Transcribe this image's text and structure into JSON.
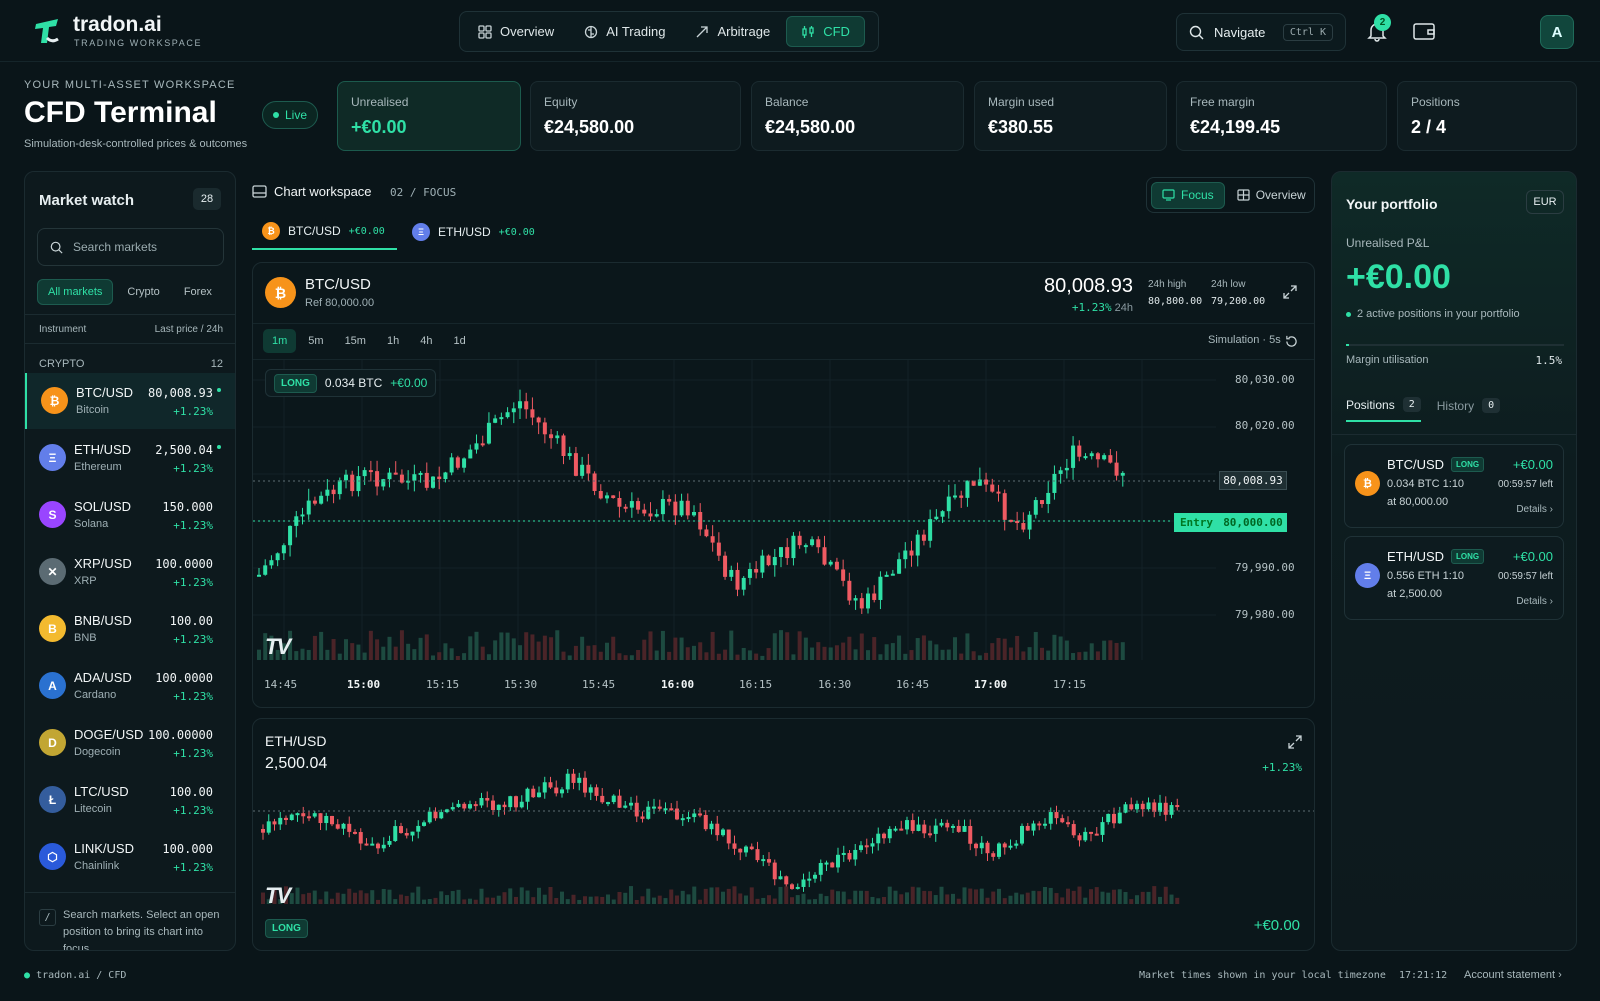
{
  "brand": {
    "name": "tradon.ai",
    "subtitle": "TRADING WORKSPACE"
  },
  "nav": [
    {
      "label": "Overview",
      "icon": "grid-icon"
    },
    {
      "label": "AI Trading",
      "icon": "brain-icon"
    },
    {
      "label": "Arbitrage",
      "icon": "trend-arrow-icon"
    },
    {
      "label": "CFD",
      "icon": "candles-icon",
      "active": true
    }
  ],
  "navigate": {
    "label": "Navigate",
    "shortcut": "Ctrl K"
  },
  "notifications": {
    "count": "2"
  },
  "user": {
    "initial": "A"
  },
  "header": {
    "eyebrow": "YOUR MULTI-ASSET WORKSPACE",
    "title": "CFD Terminal",
    "live": "Live",
    "subtitle": "Simulation-desk-controlled prices & outcomes"
  },
  "stats": [
    {
      "label": "Unrealised",
      "value": "+€0.00"
    },
    {
      "label": "Equity",
      "value": "€24,580.00"
    },
    {
      "label": "Balance",
      "value": "€24,580.00"
    },
    {
      "label": "Margin used",
      "value": "€380.55"
    },
    {
      "label": "Free margin",
      "value": "€24,199.45"
    },
    {
      "label": "Positions",
      "value": "2 / 4"
    }
  ],
  "market_watch": {
    "title": "Market watch",
    "count": "28",
    "search_placeholder": "Search markets",
    "tabs": [
      "All markets",
      "Crypto",
      "Forex"
    ],
    "col_instrument": "Instrument",
    "col_price": "Last price / 24h",
    "group": "CRYPTO",
    "group_count": "12",
    "rows": [
      {
        "symbol": "BTC/USD",
        "name": "Bitcoin",
        "price": "80,008.93",
        "change": "+1.23%",
        "glyph": "₿",
        "color": "#f7931a"
      },
      {
        "symbol": "ETH/USD",
        "name": "Ethereum",
        "price": "2,500.04",
        "change": "+1.23%",
        "glyph": "Ξ",
        "color": "#627eea"
      },
      {
        "symbol": "SOL/USD",
        "name": "Solana",
        "price": "150.000",
        "change": "+1.23%",
        "glyph": "S",
        "color": "#9945ff"
      },
      {
        "symbol": "XRP/USD",
        "name": "XRP",
        "price": "100.0000",
        "change": "+1.23%",
        "glyph": "✕",
        "color": "#5b6b73"
      },
      {
        "symbol": "BNB/USD",
        "name": "BNB",
        "price": "100.00",
        "change": "+1.23%",
        "glyph": "B",
        "color": "#f3ba2f"
      },
      {
        "symbol": "ADA/USD",
        "name": "Cardano",
        "price": "100.0000",
        "change": "+1.23%",
        "glyph": "A",
        "color": "#2a71d0"
      },
      {
        "symbol": "DOGE/USD",
        "name": "Dogecoin",
        "price": "100.00000",
        "change": "+1.23%",
        "glyph": "D",
        "color": "#c2a633"
      },
      {
        "symbol": "LTC/USD",
        "name": "Litecoin",
        "price": "100.00",
        "change": "+1.23%",
        "glyph": "Ł",
        "color": "#345d9d"
      },
      {
        "symbol": "LINK/USD",
        "name": "Chainlink",
        "price": "100.000",
        "change": "+1.23%",
        "glyph": "⬡",
        "color": "#2a5ada"
      }
    ],
    "footer_key": "/",
    "footer": "Search markets. Select an open position to bring its chart into focus."
  },
  "workspace": {
    "title": "Chart workspace",
    "mode": "02 / FOCUS",
    "views": [
      "Focus",
      "Overview"
    ],
    "tabs": [
      {
        "symbol": "BTC/USD",
        "pnl": "+€0.00",
        "glyph": "₿",
        "color": "#f7931a"
      },
      {
        "symbol": "ETH/USD",
        "pnl": "+€0.00",
        "glyph": "Ξ",
        "color": "#627eea"
      }
    ]
  },
  "btc_chart": {
    "symbol": "BTC/USD",
    "ref": "Ref 80,000.00",
    "price": "80,008.93",
    "change": "+1.23%",
    "change_period": "24h",
    "high_label": "24h high",
    "high": "80,800.00",
    "low_label": "24h low",
    "low": "79,200.00",
    "timeframes": [
      "1m",
      "5m",
      "15m",
      "1h",
      "4h",
      "1d"
    ],
    "sim": "Simulation · 5s",
    "position": {
      "side": "LONG",
      "qty": "0.034 BTC",
      "pnl": "+€0.00"
    },
    "y_ticks": [
      "80,030.00",
      "80,020.00",
      "79,990.00",
      "79,980.00"
    ],
    "x_ticks": [
      "14:45",
      "15:00",
      "15:15",
      "15:30",
      "15:45",
      "16:00",
      "16:15",
      "16:30",
      "16:45",
      "17:00",
      "17:15"
    ],
    "current_price_label": "80,008.93",
    "entry_label": "Entry",
    "entry_price": "80,000.00",
    "watermark": "TV"
  },
  "eth_chart": {
    "symbol": "ETH/USD",
    "price": "2,500.04",
    "change": "+1.23%",
    "side": "LONG",
    "pnl": "+€0.00",
    "watermark": "TV"
  },
  "portfolio": {
    "title": "Your portfolio",
    "currency": "EUR",
    "pnl_label": "Unrealised P&L",
    "pnl": "+€0.00",
    "note": "2 active positions in your portfolio",
    "margin_label": "Margin utilisation",
    "margin_value": "1.5%",
    "margin_fraction": 0.015,
    "tabs": [
      {
        "label": "Positions",
        "count": "2"
      },
      {
        "label": "History",
        "count": "0"
      }
    ],
    "positions": [
      {
        "symbol": "BTC/USD",
        "side": "LONG",
        "pnl": "+€0.00",
        "qty": "0.034 BTC  1:10",
        "time_left": "00:59:57 left",
        "at": "at 80,000.00",
        "details": "Details ›",
        "glyph": "₿",
        "color": "#f7931a"
      },
      {
        "symbol": "ETH/USD",
        "side": "LONG",
        "pnl": "+€0.00",
        "qty": "0.556 ETH  1:10",
        "time_left": "00:59:57 left",
        "at": "at 2,500.00",
        "details": "Details ›",
        "glyph": "Ξ",
        "color": "#627eea"
      }
    ]
  },
  "footer": {
    "path": "tradon.ai / CFD",
    "tz_note": "Market times shown in your local timezone",
    "clock": "17:21:12",
    "statement": "Account statement ›"
  }
}
